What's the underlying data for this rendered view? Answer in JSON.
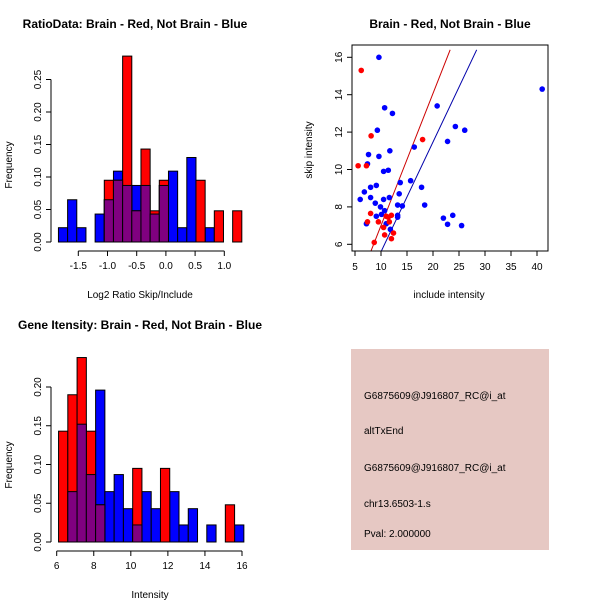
{
  "chart_data": [
    {
      "type": "bar",
      "title": "RatioData: Brain - Red, Not Brain - Blue",
      "xlabel": "Log2 Ratio Skip/Include",
      "ylabel": "Frequency",
      "bin_start": -1.84,
      "bin_width": 0.157,
      "xticks": [
        -1.5,
        -1.0,
        -0.5,
        0.0,
        0.5,
        1.0
      ],
      "xtick_labels": [
        "-1.5",
        "-1.0",
        "-0.5",
        "0.0",
        "0.5",
        "1.0"
      ],
      "yticks": [
        0,
        0.05,
        0.1,
        0.15,
        0.2,
        0.25
      ],
      "ytick_labels": [
        "0.00",
        "0.05",
        "0.10",
        "0.15",
        "0.20",
        "0.25"
      ],
      "series": [
        {
          "name": "Not Brain",
          "color": "#0000ff",
          "values": [
            0.022,
            0.065,
            0.022,
            0,
            0.043,
            0.065,
            0.109,
            0.087,
            0.087,
            0.087,
            0.043,
            0.087,
            0.109,
            0.022,
            0.13,
            0,
            0.022,
            0,
            0,
            0
          ]
        },
        {
          "name": "Brain",
          "color": "#ff0000",
          "values": [
            0,
            0,
            0,
            0,
            0,
            0.095,
            0.095,
            0.286,
            0.048,
            0.143,
            0.048,
            0.095,
            0,
            0,
            0,
            0.095,
            0,
            0.048,
            0,
            0.048
          ]
        }
      ],
      "overlap_color": "#800080"
    },
    {
      "type": "scatter",
      "title": "Brain - Red, Not Brain - Blue",
      "xlabel": "include intensity",
      "ylabel": "skip intensity",
      "xlim": [
        4.5,
        42
      ],
      "ylim": [
        5.7,
        16.4
      ],
      "xticks": [
        5,
        10,
        15,
        20,
        25,
        30,
        35,
        40
      ],
      "xtick_labels": [
        "5",
        "10",
        "15",
        "20",
        "25",
        "30",
        "35",
        "40"
      ],
      "yticks": [
        6,
        8,
        10,
        12,
        14,
        16
      ],
      "ytick_labels": [
        "6",
        "8",
        "10",
        "12",
        "14",
        "16"
      ],
      "series": [
        {
          "name": "Not Brain",
          "color": "#0000ff",
          "points": [
            [
              9.6,
              16.0
            ],
            [
              41.0,
              14.3
            ],
            [
              10.7,
              13.3
            ],
            [
              12.2,
              13.0
            ],
            [
              20.8,
              13.4
            ],
            [
              24.3,
              12.3
            ],
            [
              26.1,
              12.1
            ],
            [
              9.3,
              12.1
            ],
            [
              22.8,
              11.5
            ],
            [
              16.4,
              11.2
            ],
            [
              11.7,
              11.0
            ],
            [
              7.6,
              10.8
            ],
            [
              9.6,
              10.7
            ],
            [
              7.4,
              10.3
            ],
            [
              11.4,
              9.96
            ],
            [
              10.5,
              9.9
            ],
            [
              13.7,
              9.3
            ],
            [
              15.7,
              9.4
            ],
            [
              17.8,
              9.05
            ],
            [
              8.0,
              9.05
            ],
            [
              9.1,
              9.15
            ],
            [
              6.8,
              8.8
            ],
            [
              13.5,
              8.7
            ],
            [
              6.0,
              8.4
            ],
            [
              8.0,
              8.5
            ],
            [
              10.5,
              8.4
            ],
            [
              11.6,
              8.5
            ],
            [
              18.4,
              8.1
            ],
            [
              14.1,
              8.05
            ],
            [
              13.2,
              8.1
            ],
            [
              8.9,
              8.2
            ],
            [
              9.9,
              8.0
            ],
            [
              10.7,
              7.8
            ],
            [
              10.1,
              7.6
            ],
            [
              9.1,
              7.5
            ],
            [
              13.2,
              7.55
            ],
            [
              13.2,
              7.45
            ],
            [
              23.8,
              7.55
            ],
            [
              22.0,
              7.4
            ],
            [
              22.8,
              7.07
            ],
            [
              25.5,
              7.0
            ],
            [
              7.2,
              7.1
            ],
            [
              11.0,
              7.1
            ],
            [
              11.8,
              6.8
            ]
          ]
        },
        {
          "name": "Brain",
          "color": "#ff0000",
          "points": [
            [
              6.2,
              15.3
            ],
            [
              8.1,
              11.8
            ],
            [
              18.0,
              11.6
            ],
            [
              5.6,
              10.2
            ],
            [
              7.2,
              10.2
            ],
            [
              8.0,
              7.65
            ],
            [
              7.4,
              7.2
            ],
            [
              9.5,
              7.2
            ],
            [
              10.5,
              6.9
            ],
            [
              11.0,
              7.5
            ],
            [
              11.4,
              7.45
            ],
            [
              12.0,
              7.55
            ],
            [
              11.6,
              7.2
            ],
            [
              10.7,
              6.5
            ],
            [
              12.4,
              6.6
            ],
            [
              12.0,
              6.3
            ],
            [
              8.7,
              6.1
            ]
          ]
        }
      ],
      "lines": [
        {
          "name": "Brain fit",
          "color": "#cc0000",
          "from": [
            8.1,
            5.66
          ],
          "to": [
            23.3,
            16.4
          ]
        },
        {
          "name": "Not Brain fit",
          "color": "#0000aa",
          "from": [
            10.1,
            5.66
          ],
          "to": [
            28.4,
            16.4
          ]
        }
      ]
    },
    {
      "type": "bar",
      "title": "Gene Itensity: Brain - Red, Not Brain - Blue",
      "xlabel": "Intensity",
      "ylabel": "Frequency",
      "bin_start": 6.1,
      "bin_width": 0.5,
      "xticks": [
        6,
        8,
        10,
        12,
        14,
        16
      ],
      "xtick_labels": [
        "6",
        "8",
        "10",
        "12",
        "14",
        "16"
      ],
      "yticks": [
        0,
        0.05,
        0.1,
        0.15,
        0.2
      ],
      "ytick_labels": [
        "0.00",
        "0.05",
        "0.10",
        "0.15",
        "0.20"
      ],
      "series": [
        {
          "name": "Not Brain",
          "color": "#0000ff",
          "values": [
            0,
            0.065,
            0.152,
            0.087,
            0.196,
            0.065,
            0.087,
            0.043,
            0.022,
            0.065,
            0.043,
            0,
            0.065,
            0.022,
            0.043,
            0,
            0.022,
            0,
            0,
            0.022
          ]
        },
        {
          "name": "Brain",
          "color": "#ff0000",
          "values": [
            0.143,
            0.19,
            0.238,
            0.143,
            0.048,
            0,
            0,
            0,
            0.095,
            0,
            0,
            0.095,
            0,
            0,
            0,
            0,
            0,
            0,
            0.048,
            0
          ]
        }
      ],
      "overlap_color": "#800080"
    }
  ],
  "info_panel": {
    "background": "#e6c8c3",
    "lines": [
      "G6875609@J916807_RC@i_at",
      "altTxEnd",
      "G6875609@J916807_RC@i_at",
      "chr13.6503-1.s"
    ],
    "pval": "Pval: 2.000000",
    "pval_color": "#aa0000"
  }
}
